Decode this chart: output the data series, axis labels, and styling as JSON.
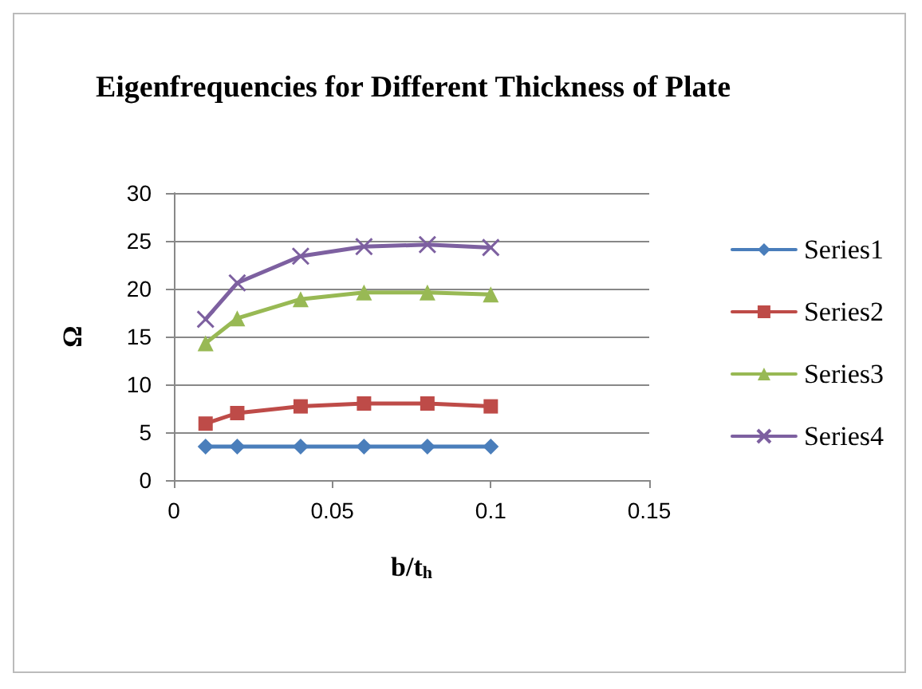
{
  "chart_data": {
    "type": "line",
    "title": "Eigenfrequencies for Different Thickness of Plate",
    "xlabel": "b/t$_{h}$",
    "ylabel": "Ω",
    "x": [
      0.01,
      0.02,
      0.04,
      0.06,
      0.08,
      0.1
    ],
    "series": [
      {
        "name": "Series1",
        "color": "#4a7ebb",
        "marker": "diamond",
        "values": [
          3.5,
          3.5,
          3.5,
          3.5,
          3.5,
          3.5
        ]
      },
      {
        "name": "Series2",
        "color": "#be4b48",
        "marker": "square",
        "values": [
          5.9,
          7.0,
          7.7,
          8.0,
          8.0,
          7.7
        ]
      },
      {
        "name": "Series3",
        "color": "#98b954",
        "marker": "triangle",
        "values": [
          14.3,
          16.9,
          18.9,
          19.6,
          19.6,
          19.4
        ]
      },
      {
        "name": "Series4",
        "color": "#7d60a0",
        "marker": "cross",
        "values": [
          16.8,
          20.6,
          23.4,
          24.4,
          24.6,
          24.3
        ]
      }
    ],
    "xlim": [
      0,
      0.15
    ],
    "xticks": [
      0,
      0.05,
      0.1,
      0.15
    ],
    "ylim": [
      0,
      30
    ],
    "yticks": [
      0,
      5,
      10,
      15,
      20,
      25,
      30
    ],
    "grid": "y",
    "legend": "right",
    "line_style": "solid"
  }
}
